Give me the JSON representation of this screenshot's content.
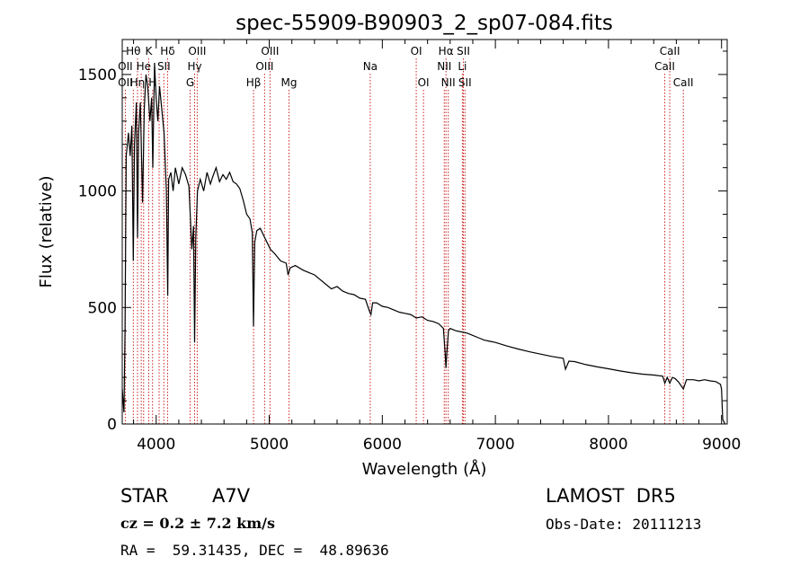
{
  "chart_data": {
    "type": "line",
    "title": "spec-55909-B90903_2_sp07-084.fits",
    "xlabel": "Wavelength (Å)",
    "ylabel": "Flux (relative)",
    "xlim": [
      3700,
      9050
    ],
    "ylim": [
      0,
      1650
    ],
    "x_ticks": [
      "4000",
      "5000",
      "6000",
      "7000",
      "8000",
      "9000"
    ],
    "y_ticks": [
      "0",
      "500",
      "1000",
      "1500"
    ],
    "grid": false,
    "series": [
      {
        "color": "#000000",
        "points": [
          [
            3700,
            150
          ],
          [
            3715,
            50
          ],
          [
            3725,
            400
          ],
          [
            3735,
            1150
          ],
          [
            3745,
            1200
          ],
          [
            3755,
            1250
          ],
          [
            3770,
            1150
          ],
          [
            3785,
            1280
          ],
          [
            3798,
            700
          ],
          [
            3808,
            1200
          ],
          [
            3825,
            1380
          ],
          [
            3835,
            800
          ],
          [
            3845,
            1250
          ],
          [
            3860,
            1380
          ],
          [
            3880,
            950
          ],
          [
            3895,
            1350
          ],
          [
            3910,
            1500
          ],
          [
            3925,
            1450
          ],
          [
            3945,
            1300
          ],
          [
            3960,
            1400
          ],
          [
            3970,
            1100
          ],
          [
            3985,
            1550
          ],
          [
            4000,
            1400
          ],
          [
            4015,
            1300
          ],
          [
            4030,
            1450
          ],
          [
            4050,
            1350
          ],
          [
            4070,
            1250
          ],
          [
            4090,
            1000
          ],
          [
            4102,
            550
          ],
          [
            4110,
            1050
          ],
          [
            4130,
            1080
          ],
          [
            4150,
            1000
          ],
          [
            4170,
            1100
          ],
          [
            4200,
            1030
          ],
          [
            4230,
            1100
          ],
          [
            4260,
            1070
          ],
          [
            4290,
            1020
          ],
          [
            4315,
            750
          ],
          [
            4330,
            850
          ],
          [
            4340,
            350
          ],
          [
            4350,
            800
          ],
          [
            4365,
            1000
          ],
          [
            4390,
            1050
          ],
          [
            4420,
            1000
          ],
          [
            4450,
            1080
          ],
          [
            4480,
            1030
          ],
          [
            4500,
            1060
          ],
          [
            4530,
            1100
          ],
          [
            4560,
            1040
          ],
          [
            4590,
            1070
          ],
          [
            4620,
            1050
          ],
          [
            4650,
            1080
          ],
          [
            4680,
            1040
          ],
          [
            4710,
            1030
          ],
          [
            4740,
            1010
          ],
          [
            4770,
            960
          ],
          [
            4800,
            900
          ],
          [
            4830,
            880
          ],
          [
            4850,
            820
          ],
          [
            4861,
            420
          ],
          [
            4872,
            780
          ],
          [
            4890,
            830
          ],
          [
            4920,
            840
          ],
          [
            4950,
            810
          ],
          [
            4980,
            780
          ],
          [
            5010,
            750
          ],
          [
            5050,
            730
          ],
          [
            5100,
            700
          ],
          [
            5150,
            690
          ],
          [
            5167,
            640
          ],
          [
            5185,
            670
          ],
          [
            5230,
            680
          ],
          [
            5300,
            660
          ],
          [
            5350,
            650
          ],
          [
            5400,
            640
          ],
          [
            5450,
            620
          ],
          [
            5500,
            600
          ],
          [
            5550,
            580
          ],
          [
            5600,
            590
          ],
          [
            5650,
            570
          ],
          [
            5700,
            560
          ],
          [
            5750,
            555
          ],
          [
            5800,
            540
          ],
          [
            5850,
            535
          ],
          [
            5889,
            480
          ],
          [
            5900,
            470
          ],
          [
            5915,
            520
          ],
          [
            5950,
            520
          ],
          [
            6000,
            505
          ],
          [
            6050,
            500
          ],
          [
            6100,
            490
          ],
          [
            6150,
            480
          ],
          [
            6200,
            475
          ],
          [
            6250,
            470
          ],
          [
            6300,
            455
          ],
          [
            6350,
            460
          ],
          [
            6400,
            445
          ],
          [
            6450,
            440
          ],
          [
            6500,
            430
          ],
          [
            6540,
            410
          ],
          [
            6556,
            300
          ],
          [
            6563,
            240
          ],
          [
            6570,
            300
          ],
          [
            6585,
            400
          ],
          [
            6600,
            410
          ],
          [
            6650,
            400
          ],
          [
            6700,
            395
          ],
          [
            6750,
            390
          ],
          [
            6800,
            380
          ],
          [
            6850,
            370
          ],
          [
            6900,
            360
          ],
          [
            6950,
            355
          ],
          [
            7000,
            350
          ],
          [
            7100,
            335
          ],
          [
            7200,
            322
          ],
          [
            7300,
            310
          ],
          [
            7400,
            300
          ],
          [
            7500,
            290
          ],
          [
            7600,
            282
          ],
          [
            7620,
            235
          ],
          [
            7650,
            270
          ],
          [
            7700,
            268
          ],
          [
            7800,
            255
          ],
          [
            7900,
            245
          ],
          [
            8000,
            237
          ],
          [
            8100,
            228
          ],
          [
            8200,
            220
          ],
          [
            8300,
            214
          ],
          [
            8400,
            210
          ],
          [
            8480,
            205
          ],
          [
            8498,
            175
          ],
          [
            8520,
            200
          ],
          [
            8542,
            175
          ],
          [
            8565,
            200
          ],
          [
            8590,
            195
          ],
          [
            8620,
            180
          ],
          [
            8662,
            150
          ],
          [
            8690,
            190
          ],
          [
            8750,
            190
          ],
          [
            8800,
            185
          ],
          [
            8850,
            190
          ],
          [
            8900,
            185
          ],
          [
            8950,
            182
          ],
          [
            8990,
            170
          ],
          [
            9000,
            150
          ],
          [
            9010,
            20
          ],
          [
            9030,
            0
          ]
        ]
      }
    ],
    "line_marks": [
      {
        "wavelength": 3727,
        "rows": [
          3
        ]
      },
      {
        "wavelength": 3798,
        "rows": [
          3
        ]
      },
      {
        "wavelength": 3835,
        "rows": [
          1
        ]
      },
      {
        "wavelength": 3868,
        "rows": [
          2
        ]
      },
      {
        "wavelength": 3889,
        "rows": [
          3
        ]
      },
      {
        "wavelength": 3934,
        "rows": [
          1
        ]
      },
      {
        "wavelength": 3968,
        "rows": [
          3
        ]
      },
      {
        "wavelength": 4026,
        "rows": [
          2
        ]
      },
      {
        "wavelength": 4068,
        "rows": [
          2
        ]
      },
      {
        "wavelength": 4101,
        "rows": [
          1
        ]
      },
      {
        "wavelength": 4300,
        "rows": [
          3
        ]
      },
      {
        "wavelength": 4340,
        "rows": [
          2
        ]
      },
      {
        "wavelength": 4363,
        "rows": [
          1
        ]
      },
      {
        "wavelength": 4861,
        "rows": [
          3
        ]
      },
      {
        "wavelength": 4959,
        "rows": [
          2
        ]
      },
      {
        "wavelength": 5007,
        "rows": [
          1
        ]
      },
      {
        "wavelength": 5175,
        "rows": [
          3
        ]
      },
      {
        "wavelength": 5893,
        "rows": [
          2
        ]
      },
      {
        "wavelength": 6300,
        "rows": [
          1
        ]
      },
      {
        "wavelength": 6364,
        "rows": [
          3
        ]
      },
      {
        "wavelength": 6548,
        "rows": [
          2,
          3
        ]
      },
      {
        "wavelength": 6563,
        "rows": [
          1
        ]
      },
      {
        "wavelength": 6583,
        "rows": [
          3
        ]
      },
      {
        "wavelength": 6708,
        "rows": [
          2
        ]
      },
      {
        "wavelength": 6717,
        "rows": [
          1
        ]
      },
      {
        "wavelength": 6731,
        "rows": [
          3
        ]
      },
      {
        "wavelength": 8498,
        "rows": [
          2
        ]
      },
      {
        "wavelength": 8542,
        "rows": [
          1
        ]
      },
      {
        "wavelength": 8662,
        "rows": [
          3
        ]
      }
    ],
    "line_labels": [
      {
        "text": "Hθ",
        "at": 3798,
        "row": 1
      },
      {
        "text": "K",
        "at": 3934,
        "row": 1
      },
      {
        "text": "Hδ",
        "at": 4101,
        "row": 1
      },
      {
        "text": "OIII",
        "at": 4363,
        "row": 1
      },
      {
        "text": "OIII",
        "at": 5007,
        "row": 1
      },
      {
        "text": "OI",
        "at": 6300,
        "row": 1
      },
      {
        "text": "Hα",
        "at": 6563,
        "row": 1
      },
      {
        "text": "SII",
        "at": 6717,
        "row": 1
      },
      {
        "text": "CaII",
        "at": 8542,
        "row": 1
      },
      {
        "text": "OII",
        "at": 3727,
        "row": 2
      },
      {
        "text": "He",
        "at": 3889,
        "row": 2
      },
      {
        "text": "SII",
        "at": 4068,
        "row": 2
      },
      {
        "text": "Hγ",
        "at": 4340,
        "row": 2
      },
      {
        "text": "OIII",
        "at": 4959,
        "row": 2
      },
      {
        "text": "Na",
        "at": 5893,
        "row": 2
      },
      {
        "text": "NII",
        "at": 6548,
        "row": 2
      },
      {
        "text": "Li",
        "at": 6708,
        "row": 2
      },
      {
        "text": "CaII",
        "at": 8498,
        "row": 2
      },
      {
        "text": "OII",
        "at": 3727,
        "row": 3
      },
      {
        "text": "Hη",
        "at": 3835,
        "row": 3
      },
      {
        "text": "H",
        "at": 3968,
        "row": 3
      },
      {
        "text": "G",
        "at": 4300,
        "row": 3
      },
      {
        "text": "Hβ",
        "at": 4861,
        "row": 3
      },
      {
        "text": "Mg",
        "at": 5175,
        "row": 3
      },
      {
        "text": "OI",
        "at": 6364,
        "row": 3
      },
      {
        "text": "NII",
        "at": 6583,
        "row": 3
      },
      {
        "text": "SII",
        "at": 6731,
        "row": 3
      },
      {
        "text": "CaII",
        "at": 8662,
        "row": 3
      }
    ]
  },
  "info": {
    "object_class": "STAR",
    "subclass": "A7V",
    "cz": "cz = 0.2 ± 7.2 km/s",
    "coords": "RA =  59.31435, DEC =  48.89636",
    "survey": "LAMOST  DR5",
    "obs_date": "Obs-Date: 20111213"
  },
  "colors": {
    "line_marker": "#cc2222",
    "spectrum": "#000000"
  }
}
